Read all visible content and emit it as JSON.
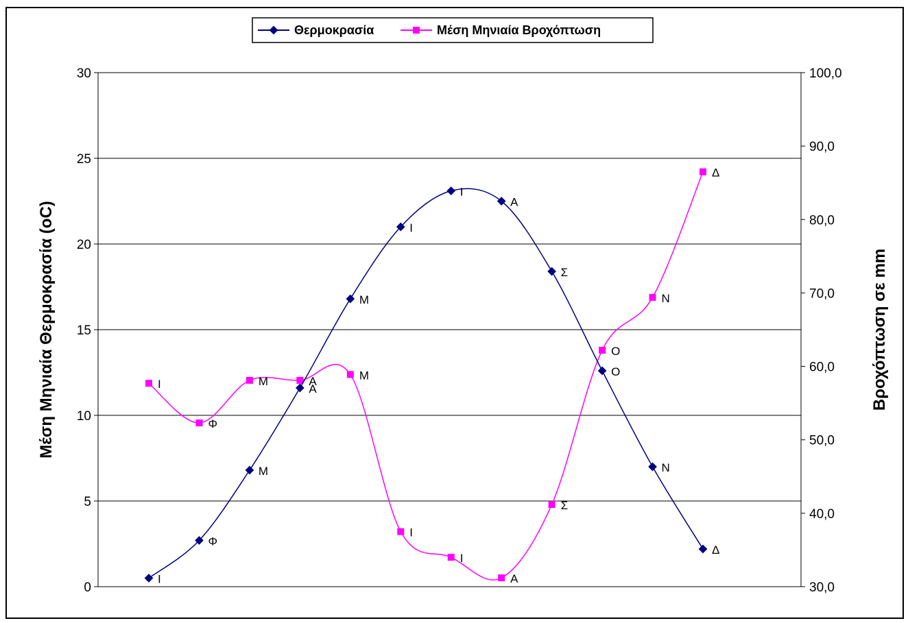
{
  "chart_data": {
    "type": "line",
    "title": "",
    "categories": [
      "Ι",
      "Φ",
      "Μ",
      "Α",
      "Μ",
      "Ι",
      "Ι",
      "Α",
      "Σ",
      "Ο",
      "Ν",
      "Δ"
    ],
    "series": [
      {
        "name": "Θερμοκρασία",
        "axis": "left",
        "color": "#000080",
        "marker": "diamond",
        "values": [
          0.5,
          2.7,
          6.8,
          11.6,
          16.8,
          21.0,
          23.1,
          22.5,
          18.4,
          12.6,
          7.0,
          2.2
        ]
      },
      {
        "name": "Μέση Μηνιαία Βροχόπτωση",
        "axis": "right",
        "color": "#FF00FF",
        "marker": "square",
        "values": [
          57.7,
          52.3,
          58.1,
          58.1,
          58.9,
          37.5,
          34.0,
          31.2,
          41.2,
          62.2,
          69.4,
          86.5
        ]
      }
    ],
    "ylabel": "Μέση Μηνιαία Θερμοκρασία (oC)",
    "ylim": [
      0,
      30
    ],
    "yticks": [
      "0",
      "5",
      "10",
      "15",
      "20",
      "25",
      "30"
    ],
    "y2label": "Βροχόπτωση σε mm",
    "y2lim": [
      30,
      100
    ],
    "y2ticks": [
      "30,0",
      "40,0",
      "50,0",
      "60,0",
      "70,0",
      "80,0",
      "90,0",
      "100,0"
    ],
    "grid": "horizontal",
    "legend_position": "top-center"
  }
}
